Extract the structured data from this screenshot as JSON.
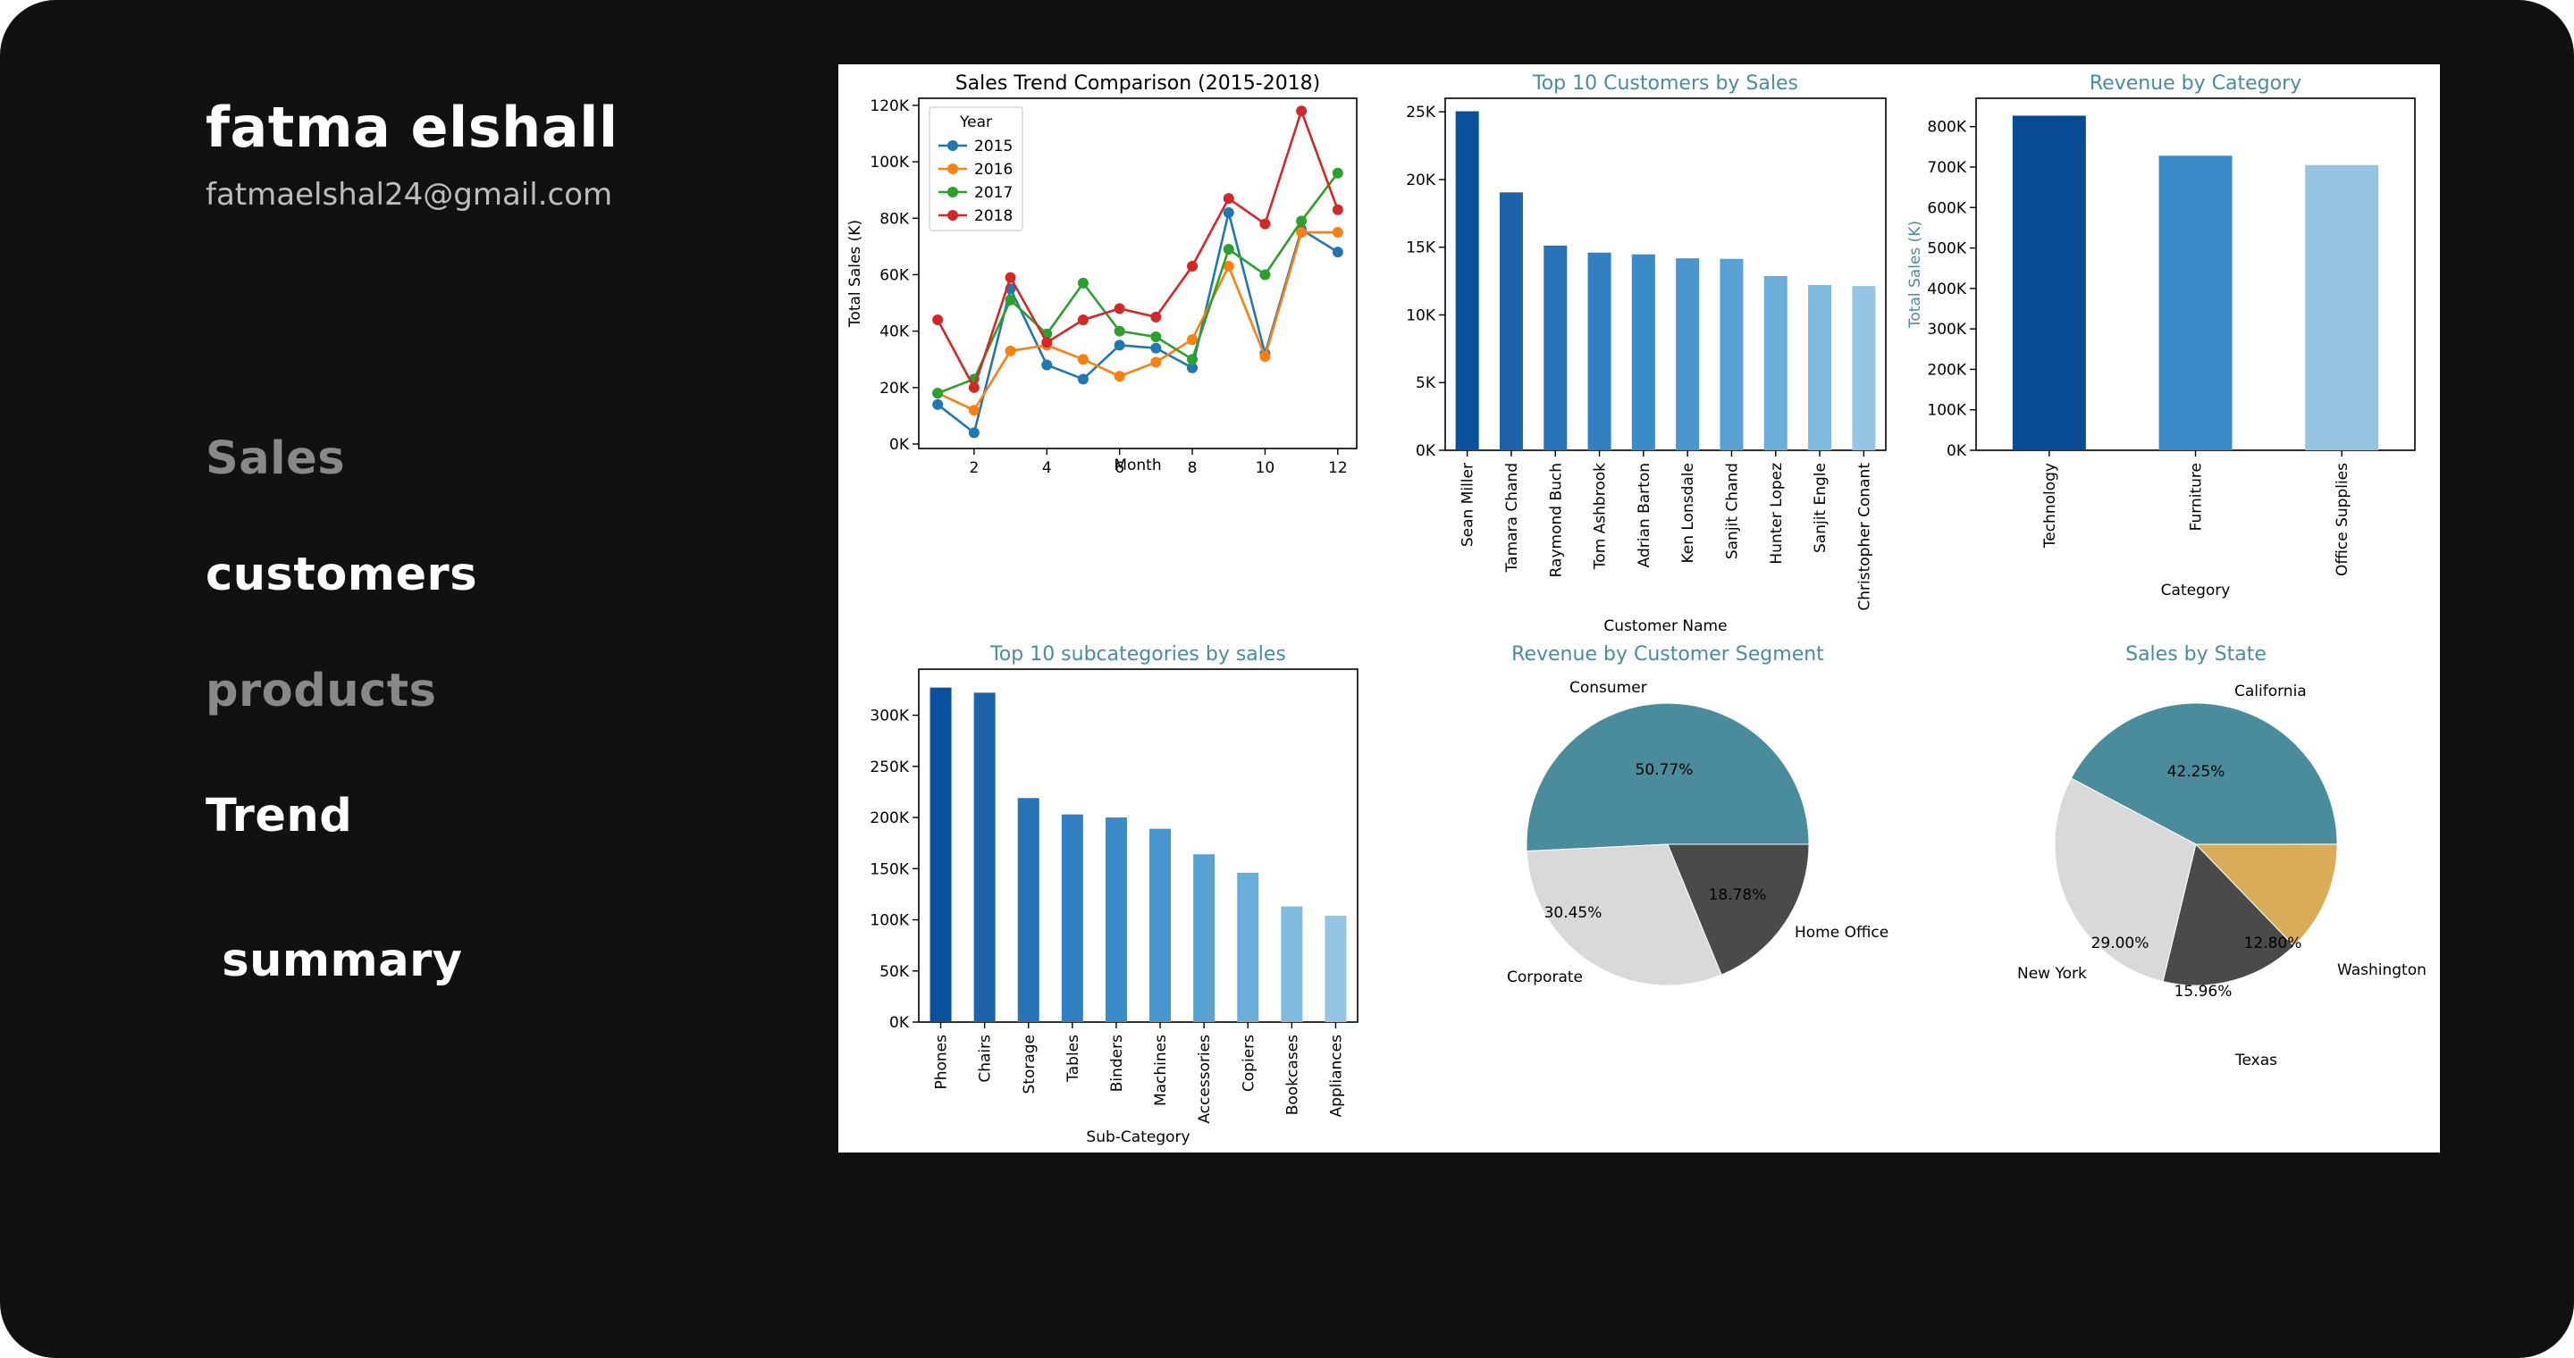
{
  "sidebar": {
    "user_name": "fatma elshall",
    "user_email": "fatmaelshal24@gmail.com",
    "nav": [
      {
        "label": "Sales"
      },
      {
        "label": "customers"
      },
      {
        "label": "products"
      },
      {
        "label": "Trend"
      },
      {
        "label": " summary"
      }
    ]
  },
  "colors": {
    "app_background": "#111111",
    "nav_muted": "#888888",
    "nav_active": "#ffffff",
    "chart_title_teal": "#4a8c9c",
    "line_2015": "#1f77b4",
    "line_2016": "#ff7f0e",
    "line_2017": "#2ca02c",
    "line_2018": "#d62728",
    "pie_teal": "#4a8c9c",
    "pie_light": "#d9d9d9",
    "pie_dark": "#4a4a4a",
    "pie_gold": "#d9ad57"
  },
  "chart_data": [
    {
      "type": "line",
      "title": "Sales Trend Comparison (2015-2018)",
      "xlabel": "Month",
      "ylabel": "Total Sales (K)",
      "legend_title": "Year",
      "legend_position": "top-left",
      "x": [
        1,
        2,
        3,
        4,
        5,
        6,
        7,
        8,
        9,
        10,
        11,
        12
      ],
      "xticks": [
        "2",
        "4",
        "6",
        "8",
        "10",
        "12"
      ],
      "yticks": [
        "0K",
        "20K",
        "40K",
        "60K",
        "80K",
        "100K",
        "120K"
      ],
      "ylim": [
        0,
        120
      ],
      "series": [
        {
          "name": "2015",
          "values": [
            14,
            4,
            55,
            28,
            23,
            35,
            34,
            27,
            82,
            32,
            76,
            68
          ]
        },
        {
          "name": "2016",
          "values": [
            18,
            12,
            33,
            35,
            30,
            24,
            29,
            37,
            63,
            31,
            75,
            75
          ]
        },
        {
          "name": "2017",
          "values": [
            18,
            23,
            51,
            39,
            57,
            40,
            38,
            30,
            69,
            60,
            79,
            96
          ]
        },
        {
          "name": "2018",
          "values": [
            44,
            20,
            59,
            36,
            44,
            48,
            45,
            63,
            87,
            78,
            118,
            83
          ]
        }
      ]
    },
    {
      "type": "bar",
      "title": "Top 10 Customers by Sales",
      "xlabel": "Customer Name",
      "categories": [
        "Sean Miller",
        "Tamara Chand",
        "Raymond Buch",
        "Tom Ashbrook",
        "Adrian Barton",
        "Ken Lonsdale",
        "Sanjit Chand",
        "Hunter Lopez",
        "Sanjit Engle",
        "Christopher Conant"
      ],
      "values": [
        25040,
        19050,
        15120,
        14600,
        14470,
        14180,
        14140,
        12870,
        12210,
        12130
      ],
      "yticks": [
        "0K",
        "5K",
        "10K",
        "15K",
        "20K",
        "25K"
      ],
      "ylim": [
        0,
        26000
      ]
    },
    {
      "type": "bar",
      "title": "Revenue by Category",
      "xlabel": "Category",
      "ylabel": "Total Sales (K)",
      "categories": [
        "Technology",
        "Furniture",
        "Office Supplies"
      ],
      "values": [
        827000,
        728000,
        705000
      ],
      "yticks": [
        "0K",
        "100K",
        "200K",
        "300K",
        "400K",
        "500K",
        "600K",
        "700K",
        "800K"
      ],
      "ylim": [
        0,
        870000
      ]
    },
    {
      "type": "bar",
      "title": "Top 10 subcategories by sales",
      "xlabel": "Sub-Category",
      "categories": [
        "Phones",
        "Chairs",
        "Storage",
        "Tables",
        "Binders",
        "Machines",
        "Accessories",
        "Copiers",
        "Bookcases",
        "Appliances"
      ],
      "values": [
        327000,
        322000,
        219000,
        203000,
        200000,
        189000,
        164000,
        146000,
        113000,
        104000
      ],
      "yticks": [
        "0K",
        "50K",
        "100K",
        "150K",
        "200K",
        "250K",
        "300K"
      ],
      "ylim": [
        0,
        345000
      ]
    },
    {
      "type": "pie",
      "title": "Revenue by Customer Segment",
      "labels": [
        "Consumer",
        "Corporate",
        "Home Office"
      ],
      "values": [
        50.77,
        30.45,
        18.78
      ],
      "pct_labels": [
        "50.77%",
        "30.45%",
        "18.78%"
      ]
    },
    {
      "type": "pie",
      "title": "Sales by State",
      "labels": [
        "California",
        "New York",
        "Texas",
        "Washington"
      ],
      "values": [
        42.25,
        29.0,
        15.96,
        12.8
      ],
      "pct_labels": [
        "42.25%",
        "29.00%",
        "15.96%",
        "12.80%"
      ]
    }
  ]
}
